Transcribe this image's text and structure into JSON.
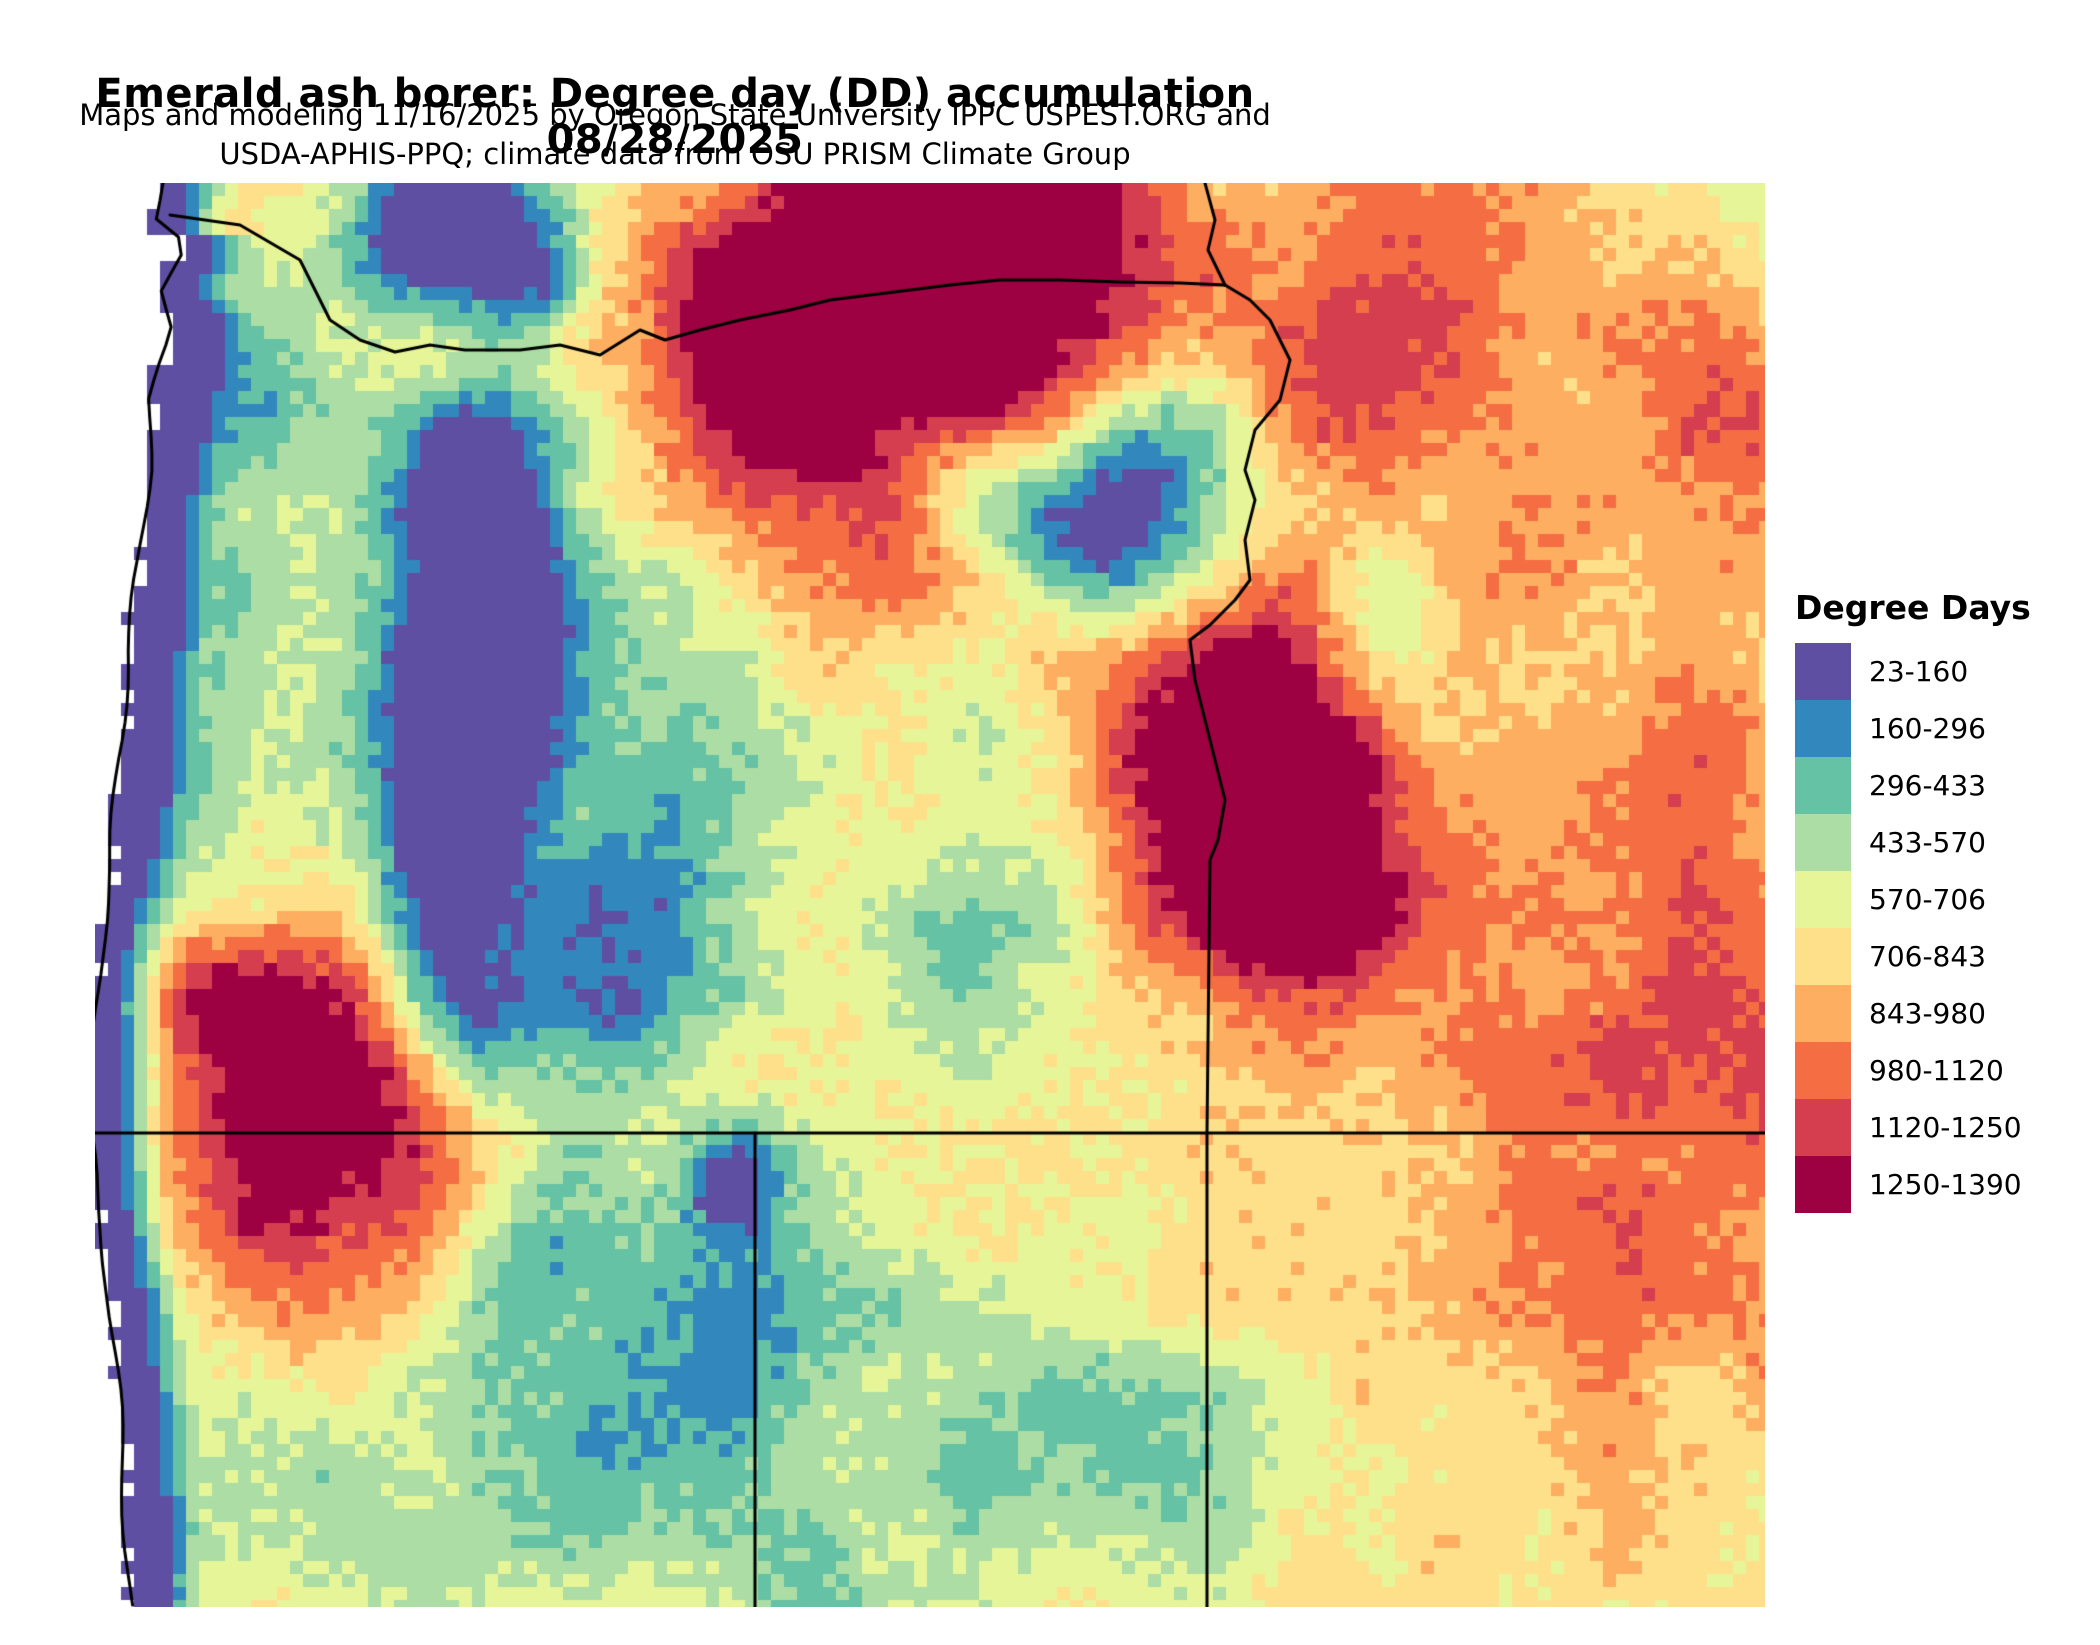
{
  "title": "Emerald ash borer: Degree day (DD) accumulation 08/28/2025",
  "subtitle": {
    "line1": "Maps and modeling 11/16/2025 by Oregon State University IPPC USPEST.ORG and",
    "line2": "USDA-APHIS-PPQ; climate data from OSU PRISM Climate Group"
  },
  "map": {
    "description": "Pixelated degree-day raster map of Oregon and surrounding region with black state and river boundary lines",
    "boundary_color": "#000000",
    "ocean_color": "#ffffff"
  },
  "legend": {
    "title": "Degree Days",
    "bins": [
      {
        "label": "23-160",
        "color": "#5e4fa2"
      },
      {
        "label": "160-296",
        "color": "#3288bd"
      },
      {
        "label": "296-433",
        "color": "#66c2a5"
      },
      {
        "label": "433-570",
        "color": "#abdda4"
      },
      {
        "label": "570-706",
        "color": "#e6f598"
      },
      {
        "label": "706-843",
        "color": "#fee08b"
      },
      {
        "label": "843-980",
        "color": "#fdae61"
      },
      {
        "label": "980-1120",
        "color": "#f46d43"
      },
      {
        "label": "1120-1250",
        "color": "#d53e4f"
      },
      {
        "label": "1250-1390",
        "color": "#9e0142"
      }
    ]
  }
}
